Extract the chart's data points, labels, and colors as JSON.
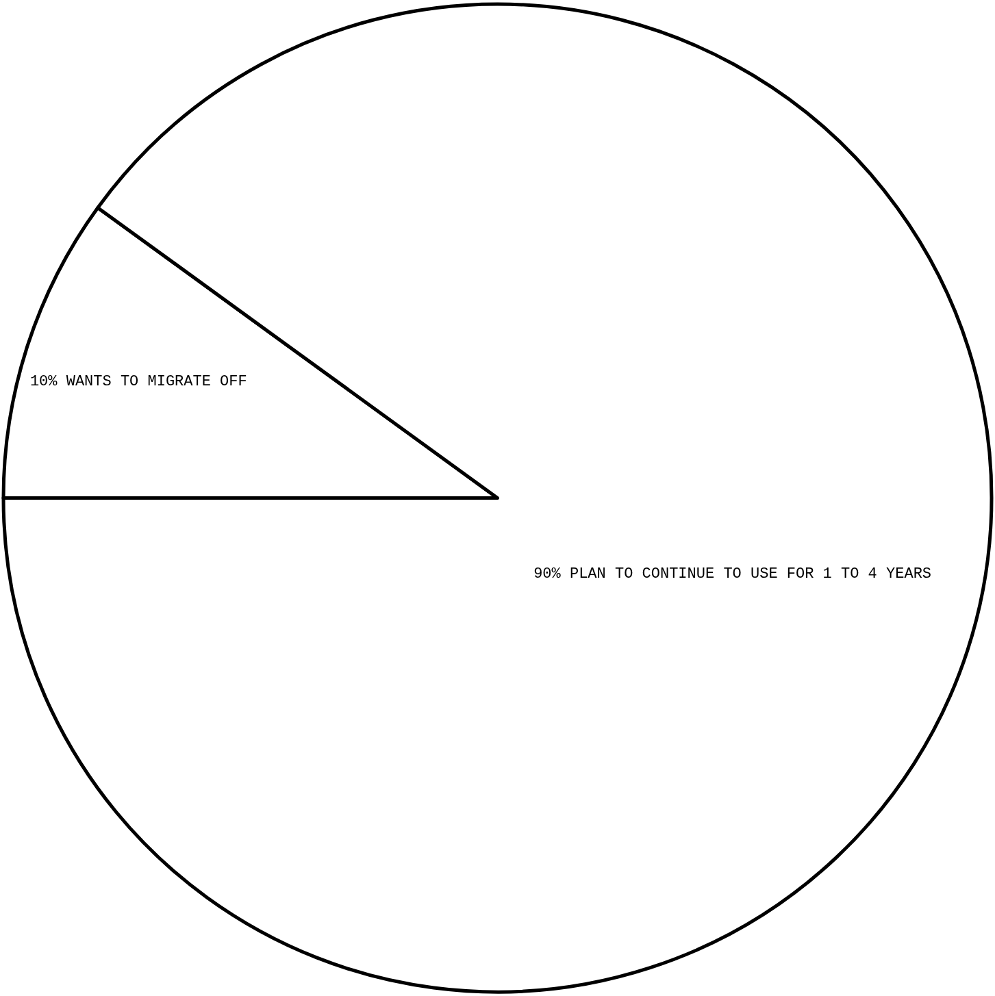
{
  "chart_data": {
    "type": "pie",
    "categories": [
      "WANTS TO MIGRATE OFF",
      "PLAN TO CONTINUE TO USE FOR 1 TO 4 YEARS"
    ],
    "values": [
      10,
      90
    ],
    "value_labels": [
      "10%",
      "90%"
    ],
    "colors": [
      "#ffffff",
      "#ffffff"
    ]
  }
}
